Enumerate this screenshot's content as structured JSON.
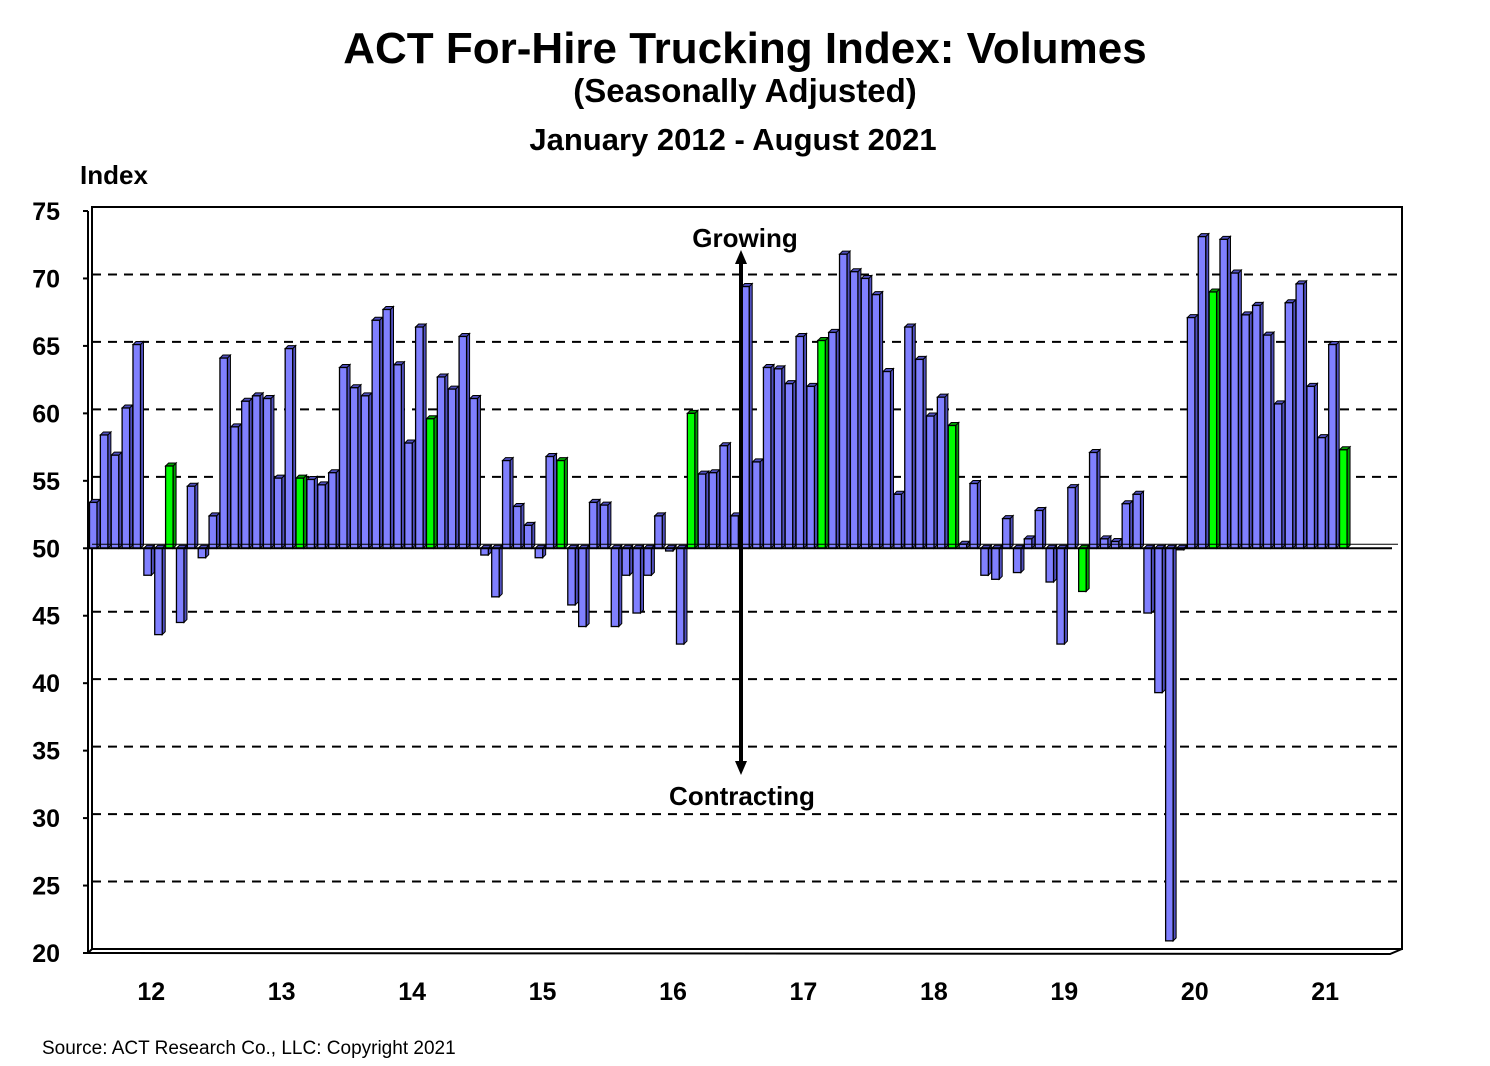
{
  "chart_data": {
    "type": "bar",
    "title": "ACT For-Hire Trucking Index: Volumes",
    "subtitle": "(Seasonally Adjusted)",
    "date_range": "January  2012 - August  2021",
    "ylabel": "Index",
    "ylim": [
      20,
      75
    ],
    "yticks": [
      "75",
      "70",
      "65",
      "60",
      "55",
      "50",
      "45",
      "40",
      "35",
      "30",
      "25",
      "20"
    ],
    "baseline": 50,
    "x_tick_labels": [
      "12",
      "13",
      "14",
      "15",
      "16",
      "17",
      "18",
      "19",
      "20",
      "21"
    ],
    "grid": "horizontal dashed",
    "highlight_month": "August",
    "colors": {
      "bar": "#8080ff",
      "highlight": "#00ff00",
      "outline": "#000000"
    },
    "annotations": {
      "up": "Growing",
      "down": "Contracting"
    },
    "values": [
      53.4,
      58.4,
      56.9,
      60.4,
      65.1,
      48.0,
      43.6,
      56.1,
      44.5,
      54.6,
      49.3,
      52.4,
      64.1,
      59.0,
      60.9,
      61.3,
      61.1,
      55.2,
      64.8,
      55.2,
      55.1,
      54.7,
      55.6,
      63.4,
      61.9,
      61.3,
      66.9,
      67.7,
      63.6,
      57.8,
      66.4,
      59.6,
      62.7,
      61.8,
      65.7,
      61.1,
      49.5,
      46.4,
      56.5,
      53.1,
      51.7,
      49.3,
      56.8,
      56.5,
      45.8,
      44.2,
      53.4,
      53.2,
      44.2,
      48.0,
      45.2,
      48.0,
      52.4,
      49.8,
      42.9,
      60.0,
      55.5,
      55.6,
      57.6,
      52.4,
      69.4,
      56.4,
      63.4,
      63.3,
      62.2,
      65.7,
      62.0,
      65.4,
      66.0,
      71.8,
      70.5,
      70.0,
      68.8,
      63.1,
      54.0,
      66.4,
      64.0,
      59.8,
      61.2,
      59.1,
      50.3,
      54.8,
      48.0,
      47.7,
      52.2,
      48.2,
      50.7,
      52.8,
      47.5,
      42.9,
      54.5,
      46.8,
      57.1,
      50.7,
      50.5,
      53.3,
      54.0,
      45.2,
      39.3,
      20.9,
      49.9,
      67.1,
      73.1,
      69.0,
      72.9,
      70.4,
      67.3,
      68.0,
      65.8,
      60.7,
      68.2,
      69.6,
      62.0,
      58.2,
      65.1,
      57.3
    ]
  },
  "source": "Source: ACT Research Co., LLC: Copyright 2021"
}
